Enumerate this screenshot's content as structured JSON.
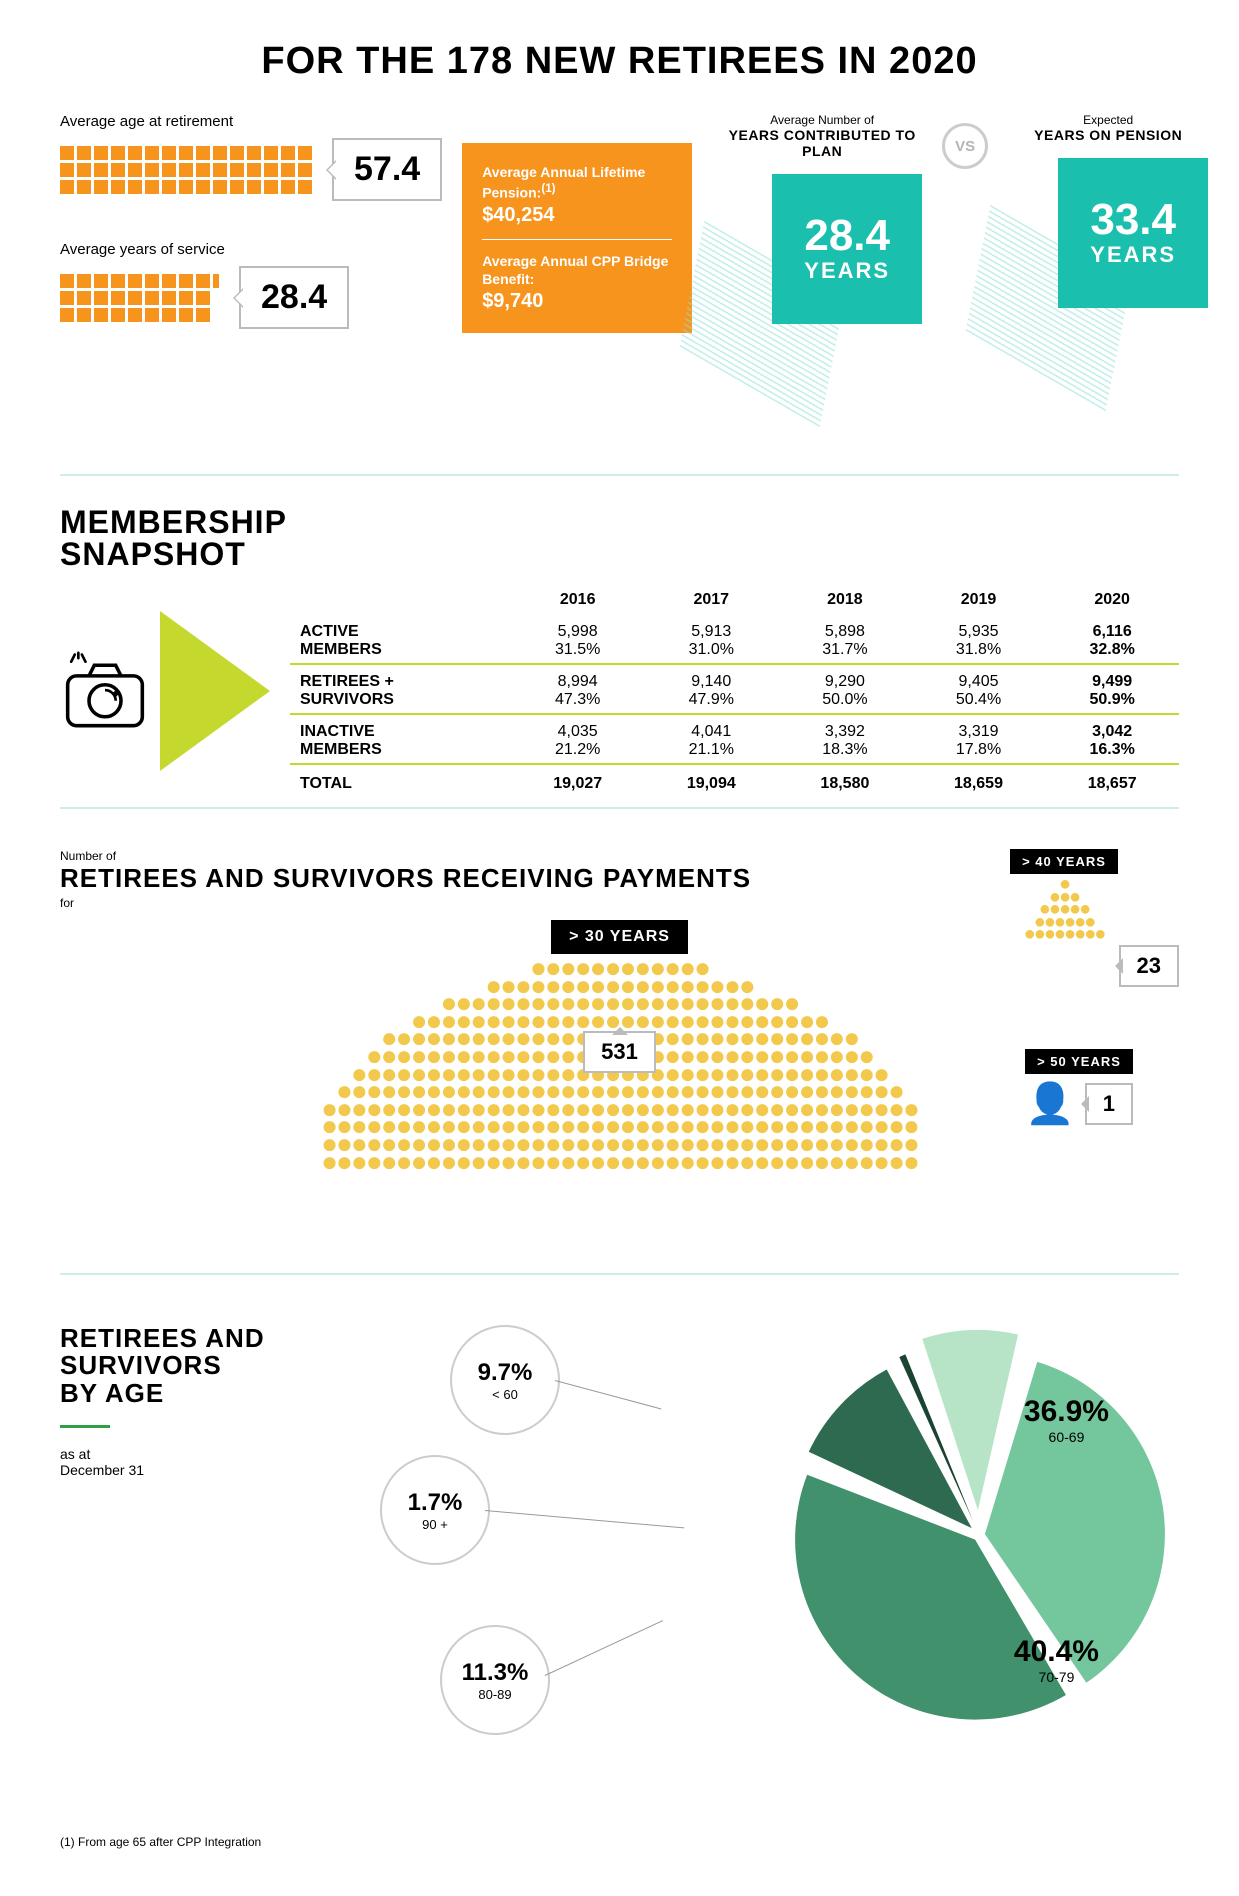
{
  "main_title": "FOR THE 178 NEW RETIREES IN 2020",
  "section1": {
    "avg_age_label": "Average age at retirement",
    "avg_age_value": "57.4",
    "avg_age_grid": {
      "rows": 3,
      "cols": 15,
      "partial_cols": 0
    },
    "avg_service_label": "Average years of service",
    "avg_service_value": "28.4",
    "avg_service_grid": {
      "rows": 3,
      "cols": 9,
      "partial": true
    },
    "orange": {
      "line1_label": "Average Annual Lifetime Pension:",
      "line1_sup": "(1)",
      "line1_value": "$40,254",
      "line2_label": "Average Annual CPP Bridge Benefit:",
      "line2_value": "$9,740"
    },
    "vs": {
      "left_small": "Average Number of",
      "left_head": "YEARS CONTRIBUTED TO PLAN",
      "left_num": "28.4",
      "left_unit": "YEARS",
      "badge": "VS",
      "right_small": "Expected",
      "right_head": "YEARS ON PENSION",
      "right_num": "33.4",
      "right_unit": "YEARS"
    }
  },
  "section2": {
    "title_line1": "MEMBERSHIP",
    "title_line2": "SNAPSHOT",
    "years": [
      "2016",
      "2017",
      "2018",
      "2019",
      "2020"
    ],
    "rows": [
      {
        "label1": "ACTIVE",
        "label2": "MEMBERS",
        "counts": [
          "5,998",
          "5,913",
          "5,898",
          "5,935",
          "6,116"
        ],
        "pcts": [
          "31.5%",
          "31.0%",
          "31.7%",
          "31.8%",
          "32.8%"
        ]
      },
      {
        "label1": "RETIREES +",
        "label2": "SURVIVORS",
        "counts": [
          "8,994",
          "9,140",
          "9,290",
          "9,405",
          "9,499"
        ],
        "pcts": [
          "47.3%",
          "47.9%",
          "50.0%",
          "50.4%",
          "50.9%"
        ]
      },
      {
        "label1": "INACTIVE",
        "label2": "MEMBERS",
        "counts": [
          "4,035",
          "4,041",
          "3,392",
          "3,319",
          "3,042"
        ],
        "pcts": [
          "21.2%",
          "21.1%",
          "18.3%",
          "17.8%",
          "16.3%"
        ]
      }
    ],
    "total_label": "TOTAL",
    "totals": [
      "19,027",
      "19,094",
      "18,580",
      "18,659",
      "18,657"
    ]
  },
  "section3": {
    "pretitle": "Number of",
    "title": "RETIREES AND SURVIVORS RECEIVING PAYMENTS",
    "subtitle": "for",
    "groups": [
      {
        "badge": "> 30 YEARS",
        "value": "531"
      },
      {
        "badge": "> 40 YEARS",
        "value": "23"
      },
      {
        "badge": "> 50 YEARS",
        "value": "1"
      }
    ]
  },
  "section4": {
    "title_l1": "RETIREES AND",
    "title_l2": "SURVIVORS",
    "title_l3": "BY AGE",
    "date_l1": "as at",
    "date_l2": "December 31",
    "slices": [
      {
        "pct": "9.7%",
        "range": "< 60",
        "color": "#b7e4c7",
        "angle": 34.9
      },
      {
        "pct": "36.9%",
        "range": "60-69",
        "color": "#74c69d",
        "angle": 132.8
      },
      {
        "pct": "40.4%",
        "range": "70-79",
        "color": "#40916c",
        "angle": 145.4
      },
      {
        "pct": "11.3%",
        "range": "80-89",
        "color": "#2d6a4f",
        "angle": 40.7
      },
      {
        "pct": "1.7%",
        "range": "90 +",
        "color": "#1b4332",
        "angle": 6.1
      }
    ]
  },
  "footnote": "(1) From age 65 after CPP Integration",
  "colors": {
    "orange": "#f7941e",
    "teal": "#1bbfae",
    "lime": "#c4d82e",
    "yellow": "#f2c94c"
  }
}
